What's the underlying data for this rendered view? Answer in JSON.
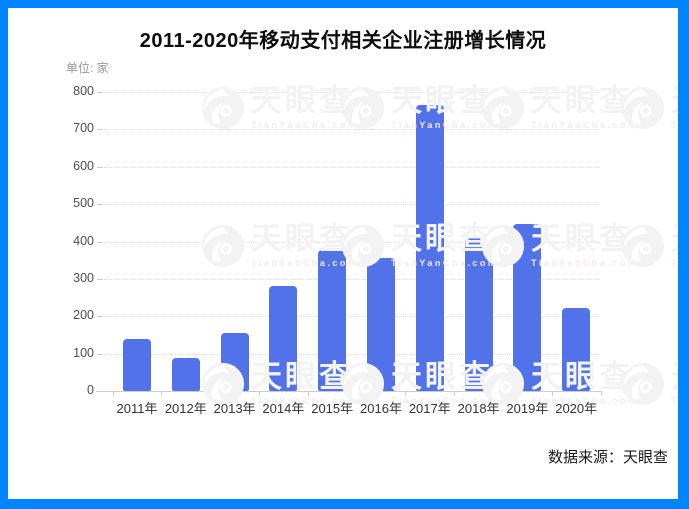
{
  "colors": {
    "frame_border": "#0085ff",
    "panel_background": "#ffffff",
    "bar": "#5272e9",
    "gridline": "#dddddd",
    "watermark_gray": "#f3f3f3",
    "watermark_pink": "#f6e9e9"
  },
  "title": "2011-2020年移动支付相关企业注册增长情况",
  "unit_label": "单位: 家",
  "source_label": "数据来源：天眼查",
  "watermark": {
    "brand": "天眼查",
    "domain": "TianYanCha.com"
  },
  "chart_data": {
    "type": "bar",
    "title": "2011-2020年移动支付相关企业注册增长情况",
    "xlabel": "",
    "ylabel": "单位: 家",
    "unit": "家",
    "categories": [
      "2011年",
      "2012年",
      "2013年",
      "2014年",
      "2015年",
      "2016年",
      "2017年",
      "2018年",
      "2019年",
      "2020年"
    ],
    "values": [
      140,
      88,
      154,
      281,
      376,
      357,
      766,
      410,
      446,
      223
    ],
    "ylim": [
      0,
      800
    ],
    "ytick_step": 100,
    "yticks": [
      0,
      100,
      200,
      300,
      400,
      500,
      600,
      700,
      800
    ],
    "grid": true,
    "gridline_style": "dotted",
    "bar_color": "#5272e9",
    "legend": null,
    "source": "数据来源：天眼查"
  }
}
